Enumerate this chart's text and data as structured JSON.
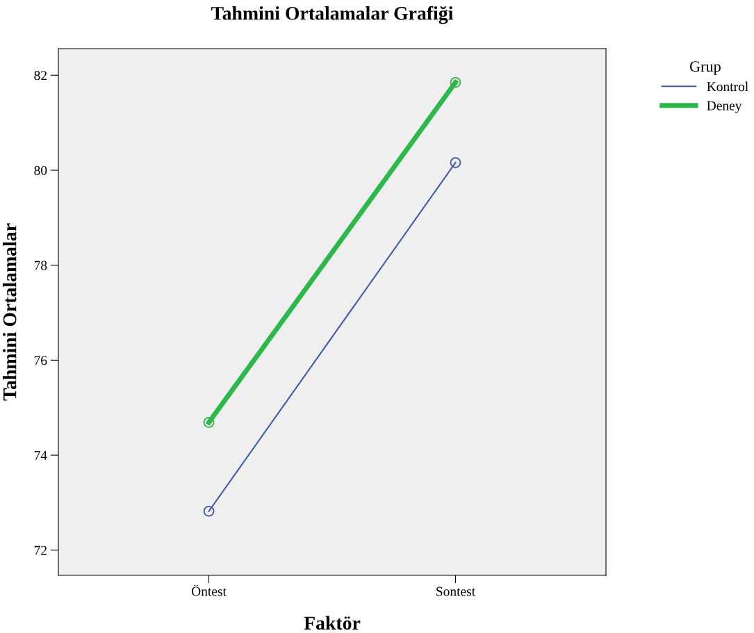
{
  "chart_data": {
    "type": "line",
    "title": "Tahmini Ortalamalar Grafiği",
    "xlabel": "Faktör",
    "ylabel": "Tahmini Ortalamalar",
    "categories": [
      "Öntest",
      "Sontest"
    ],
    "series": [
      {
        "name": "Kontrol",
        "color": "#3e58ac",
        "values": [
          72.82,
          80.16
        ]
      },
      {
        "name": "Deney",
        "color": "#2db84a",
        "values": [
          74.69,
          81.85
        ]
      }
    ],
    "ylim": [
      71.47,
      82.56
    ],
    "yticks": [
      72,
      74,
      76,
      78,
      80,
      82
    ],
    "grid": false,
    "legend": "top right",
    "legend_title": "Grup",
    "marker": "circle",
    "line_style": "solid"
  }
}
